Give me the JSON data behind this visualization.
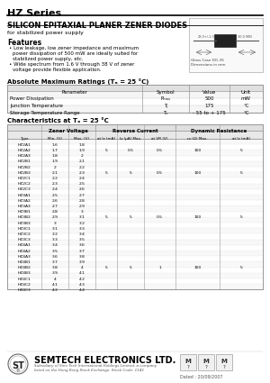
{
  "title": "HZ Series",
  "subtitle": "SILICON EPITAXIAL PLANER ZENER DIODES",
  "for_text": "for stabilized power supply",
  "features_title": "Features",
  "feature1_line1": "Low leakage, low zener impedance and maximum",
  "feature1_line2": "power dissipation of 500 mW are ideally suited for",
  "feature1_line3": "stabilized power supply, etc.",
  "feature2_line1": "Wide spectrum from 1.6 V through 38 V of zener",
  "feature2_line2": "voltage provide flexible application.",
  "abs_max_title": "Absolute Maximum Ratings (Tₐ = 25 °C)",
  "abs_max_headers": [
    "Parameter",
    "Symbol",
    "Value",
    "Unit"
  ],
  "abs_max_rows": [
    [
      "Power Dissipation",
      "Pmax",
      "500",
      "mW"
    ],
    [
      "Junction Temperature",
      "Tj",
      "175",
      "°C"
    ],
    [
      "Storage Temperature Range",
      "Ts",
      "- 55 to + 175",
      "°C"
    ]
  ],
  "char_title": "Characteristics at Tₐ = 25 °C",
  "char_group_headers": [
    "Zener Voltage",
    "Reverse Current",
    "Dynamic Resistance"
  ],
  "char_headers": [
    "Type",
    "Min. (V)",
    "Max. (V)",
    "at Iz (mA)",
    "Iz (μA) Max.",
    "at VR (V)",
    "rz (Ω) Max.",
    "at Iz (mA)"
  ],
  "char_rows": [
    [
      "HZ2A1",
      "1.6",
      "1.8",
      "",
      "",
      "",
      "",
      ""
    ],
    [
      "HZ2A2",
      "1.7",
      "1.9",
      "5",
      "0.5",
      "0.5",
      "100",
      "5"
    ],
    [
      "HZ2A3",
      "1.8",
      "2",
      "",
      "",
      "",
      "",
      ""
    ],
    [
      "HZ2B1",
      "1.9",
      "2.1",
      "",
      "",
      "",
      "",
      ""
    ],
    [
      "HZ2B2",
      "2",
      "2.2",
      "",
      "",
      "",
      "",
      ""
    ],
    [
      "HZ2B3",
      "2.1",
      "2.3",
      "5",
      "5",
      "0.5",
      "100",
      "5"
    ],
    [
      "HZ2C1",
      "2.2",
      "2.4",
      "",
      "",
      "",
      "",
      ""
    ],
    [
      "HZ2C2",
      "2.3",
      "2.5",
      "",
      "",
      "",
      "",
      ""
    ],
    [
      "HZ2C3",
      "2.4",
      "2.6",
      "",
      "",
      "",
      "",
      ""
    ],
    [
      "HZ3A1",
      "2.5",
      "2.7",
      "",
      "",
      "",
      "",
      ""
    ],
    [
      "HZ3A2",
      "2.6",
      "2.8",
      "",
      "",
      "",
      "",
      ""
    ],
    [
      "HZ3A3",
      "2.7",
      "2.9",
      "",
      "",
      "",
      "",
      ""
    ],
    [
      "HZ3B1",
      "2.8",
      "3",
      "",
      "",
      "",
      "",
      ""
    ],
    [
      "HZ3B2",
      "2.9",
      "3.1",
      "5",
      "5",
      "0.5",
      "100",
      "5"
    ],
    [
      "HZ3B3",
      "3",
      "3.2",
      "",
      "",
      "",
      "",
      ""
    ],
    [
      "HZ3C1",
      "3.1",
      "3.3",
      "",
      "",
      "",
      "",
      ""
    ],
    [
      "HZ3C2",
      "3.2",
      "3.4",
      "",
      "",
      "",
      "",
      ""
    ],
    [
      "HZ3C3",
      "3.3",
      "3.5",
      "",
      "",
      "",
      "",
      ""
    ],
    [
      "HZ4A1",
      "3.4",
      "3.6",
      "",
      "",
      "",
      "",
      ""
    ],
    [
      "HZ4A2",
      "3.5",
      "3.7",
      "",
      "",
      "",
      "",
      ""
    ],
    [
      "HZ4A3",
      "3.6",
      "3.8",
      "",
      "",
      "",
      "",
      ""
    ],
    [
      "HZ4B1",
      "3.7",
      "3.9",
      "",
      "",
      "",
      "",
      ""
    ],
    [
      "HZ4B2",
      "3.8",
      "4",
      "5",
      "5",
      "1",
      "100",
      "5"
    ],
    [
      "HZ4B3",
      "3.9",
      "4.1",
      "",
      "",
      "",
      "",
      ""
    ],
    [
      "HZ4C1",
      "4",
      "4.2",
      "",
      "",
      "",
      "",
      ""
    ],
    [
      "HZ4C2",
      "4.1",
      "4.3",
      "",
      "",
      "",
      "",
      ""
    ],
    [
      "HZ4C3",
      "4.2",
      "4.4",
      "",
      "",
      "",
      "",
      ""
    ]
  ],
  "footer_company": "SEMTECH ELECTRONICS LTD.",
  "footer_sub1": "Subsidiary of Sino Tech International Holdings Limited, a company",
  "footer_sub2": "listed on the Hong Kong Stock Exchange. Stock Code: 1141",
  "footer_date": "Dated : 20/09/2007",
  "bg_color": "#ffffff"
}
